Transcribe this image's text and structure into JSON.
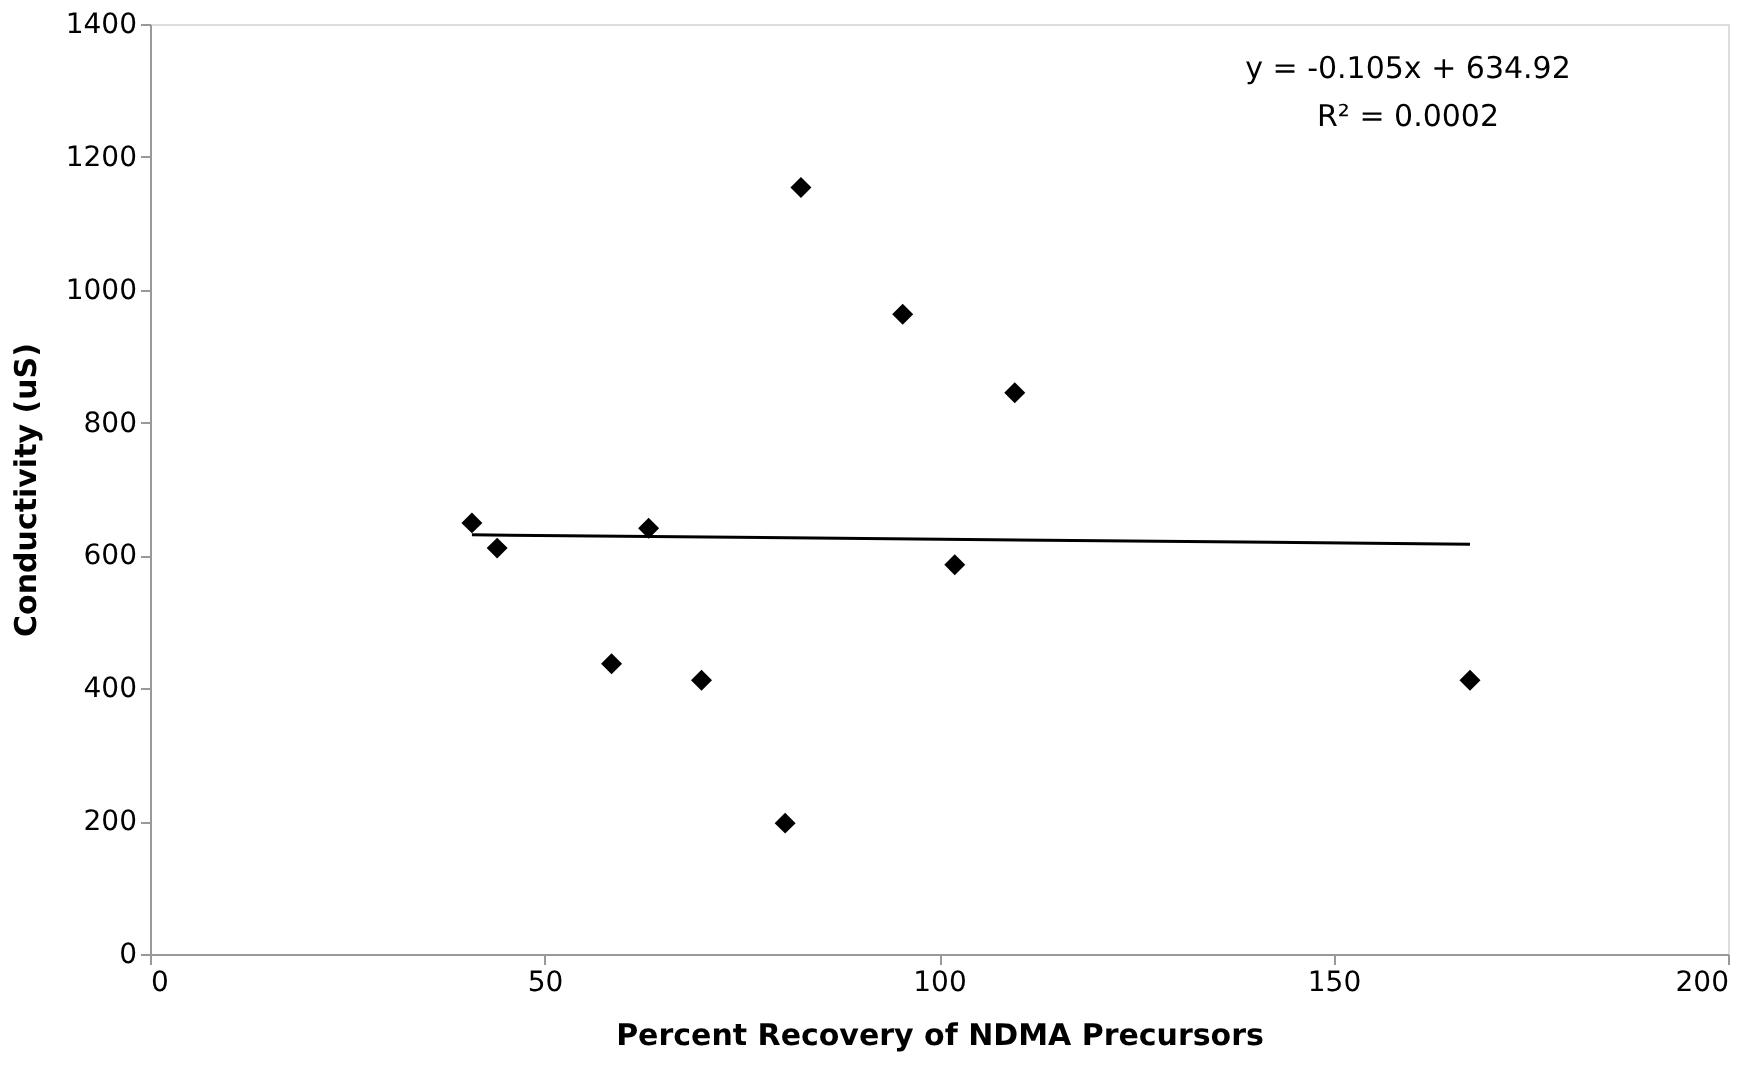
{
  "chart_data": {
    "type": "scatter",
    "xlabel": "Percent Recovery of NDMA Precursors",
    "ylabel": "Conductivity (uS)",
    "marker": "diamond",
    "grid": false,
    "xlim": [
      0,
      200
    ],
    "xticks": [
      0,
      50,
      100,
      150,
      200
    ],
    "ylim": [
      0,
      1400
    ],
    "yticks": [
      0,
      200,
      400,
      600,
      800,
      1000,
      1200,
      1400
    ],
    "series": [
      {
        "color": "#000000",
        "x": [
          40.8,
          44.0,
          63.2,
          58.5,
          69.9,
          80.5,
          82.5,
          95.4,
          109.6,
          102.0,
          167.3
        ],
        "values": [
          649,
          611,
          641,
          437,
          412,
          197,
          1154,
          963,
          845,
          586,
          412
        ]
      },
      {
        "type": "line",
        "color": "#000000",
        "marker": "none",
        "x": [
          40.8,
          167.3
        ],
        "values": [
          631,
          617
        ]
      }
    ],
    "annotations": [
      "y = -0.105x + 634.92",
      "R² = 0.0002"
    ]
  }
}
